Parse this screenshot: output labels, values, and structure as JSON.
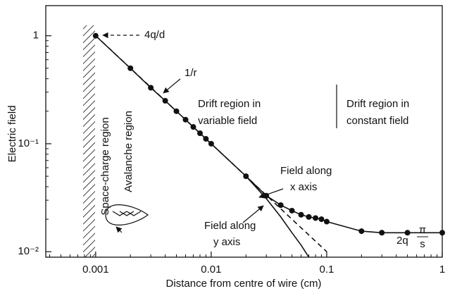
{
  "chart_data": {
    "type": "line",
    "xlabel": "Distance from centre of wire (cm)",
    "ylabel": "Electric field",
    "xscale": "log",
    "yscale": "log",
    "xlim": [
      0.00037,
      1
    ],
    "ylim": [
      0.0089,
      1.9
    ],
    "xticks": [
      0.001,
      0.01,
      0.1,
      1
    ],
    "yticks": [
      {
        "value": 0.01,
        "label": "10⁻²"
      },
      {
        "value": 0.1,
        "label": "10⁻¹"
      },
      1
    ],
    "xminorticks": [
      0.0004,
      0.0005,
      0.0006,
      0.0007,
      0.0008,
      0.0009,
      0.002,
      0.003,
      0.004,
      0.005,
      0.006,
      0.007,
      0.008,
      0.009,
      0.02,
      0.03,
      0.04,
      0.05,
      0.06,
      0.07,
      0.08,
      0.09,
      0.2,
      0.3,
      0.4,
      0.5,
      0.6,
      0.7,
      0.8,
      0.9
    ],
    "yminorticks": [
      0.02,
      0.03,
      0.04,
      0.05,
      0.06,
      0.07,
      0.08,
      0.09,
      0.2,
      0.3,
      0.4,
      0.5,
      0.6,
      0.7,
      0.8,
      0.9
    ],
    "series": [
      {
        "color": "#111111",
        "style": "solid",
        "markers": true,
        "x": [
          0.001,
          0.002,
          0.003,
          0.004,
          0.005,
          0.006,
          0.007,
          0.008,
          0.009,
          0.01,
          0.02,
          0.03,
          0.04,
          0.05,
          0.06,
          0.07,
          0.08,
          0.09,
          0.1,
          0.2,
          0.3,
          0.5,
          1
        ],
        "values": [
          1,
          0.5,
          0.33,
          0.25,
          0.2,
          0.167,
          0.143,
          0.125,
          0.111,
          0.1,
          0.05,
          0.033,
          0.027,
          0.024,
          0.022,
          0.021,
          0.0205,
          0.02,
          0.019,
          0.0155,
          0.015,
          0.015,
          0.015
        ]
      },
      {
        "color": "#111111",
        "style": "solid",
        "markers": false,
        "x": [
          0.02,
          0.03,
          0.04,
          0.05,
          0.06,
          0.07
        ],
        "values": [
          0.05,
          0.031,
          0.021,
          0.015,
          0.0115,
          0.0089
        ]
      },
      {
        "color": "#111111",
        "style": "dashed",
        "markers": false,
        "x": [
          0.001,
          0.1
        ],
        "values": [
          1,
          0.01
        ]
      }
    ],
    "annotations": [
      [
        "4q/d"
      ],
      [
        "1/r"
      ],
      [
        "Drift region in",
        "variable field"
      ],
      [
        "Drift region in",
        "constant field"
      ],
      [
        "Field along",
        "x axis"
      ],
      [
        "Field along",
        "y  axis"
      ],
      [
        "2q",
        "π",
        "s"
      ],
      [
        "Space-charge region"
      ],
      [
        "Avalanche region"
      ]
    ]
  }
}
